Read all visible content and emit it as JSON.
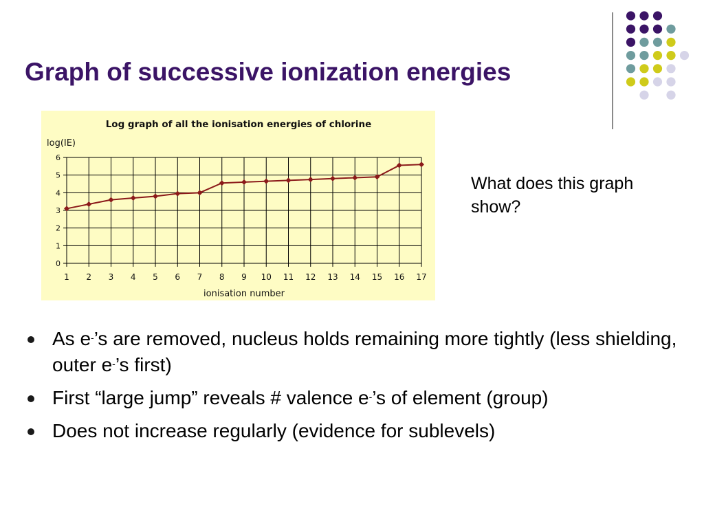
{
  "slide": {
    "title": "Graph of successive ionization energies",
    "question": "What does this graph show?"
  },
  "colors": {
    "title": "#3b1466",
    "chart_background": "#fefcc4",
    "series": "#8b1a1a",
    "deco_purple": "#3b1466",
    "deco_teal": "#6f9c9e",
    "deco_yellow": "#cfcb1a",
    "deco_lavender": "#d6d4e8"
  },
  "bullets": [
    {
      "parts": [
        "As e",
        "-",
        "’s are removed, nucleus holds remaining more tightly (less shielding, outer e",
        "-",
        "’s first)"
      ]
    },
    {
      "parts": [
        "First “large jump” reveals # valence e",
        "-",
        "’s of element (group)"
      ]
    },
    {
      "parts": [
        "Does not increase regularly (evidence for sublevels)"
      ]
    }
  ],
  "chart_data": {
    "type": "line",
    "title": "Log graph of all the ionisation energies of chlorine",
    "ylabel": "log(IE)",
    "xlabel": "ionisation number",
    "x": [
      1,
      2,
      3,
      4,
      5,
      6,
      7,
      8,
      9,
      10,
      11,
      12,
      13,
      14,
      15,
      16,
      17
    ],
    "series": [
      {
        "values": [
          3.1,
          3.35,
          3.6,
          3.7,
          3.8,
          3.95,
          4.0,
          4.55,
          4.6,
          4.65,
          4.7,
          4.75,
          4.8,
          4.85,
          4.9,
          5.55,
          5.6
        ]
      }
    ],
    "ylim": [
      0,
      6
    ],
    "yticks": [
      0,
      1,
      2,
      3,
      4,
      5,
      6
    ],
    "grid": true,
    "legend": "none"
  }
}
